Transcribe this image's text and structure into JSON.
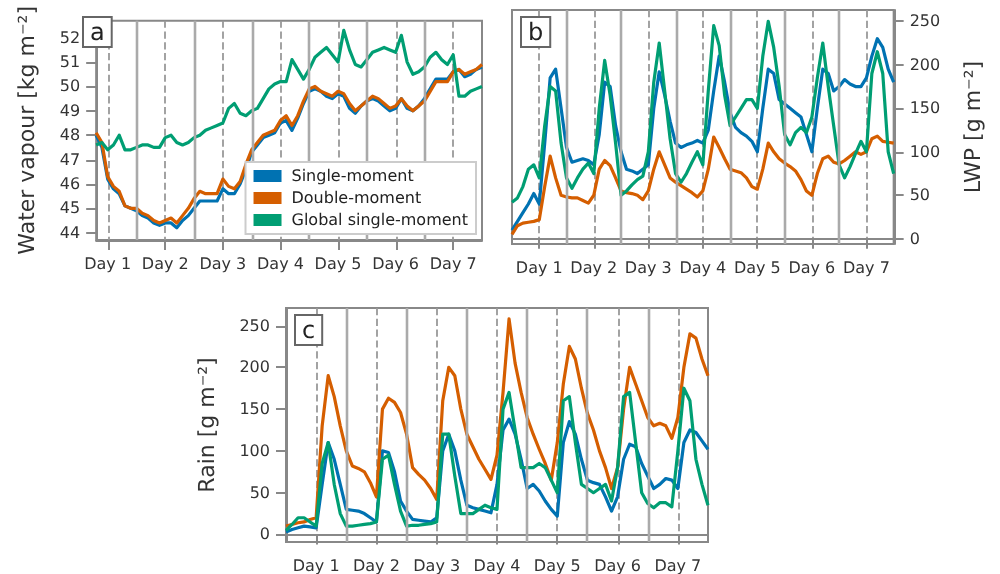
{
  "chart_data": [
    {
      "type": "line",
      "annotations": [
        "a"
      ],
      "ylabel": "Water vapour [kg m⁻²]",
      "ylim": [
        43.7,
        52.7
      ],
      "yticks": [
        44,
        45,
        46,
        47,
        48,
        49,
        50,
        51,
        52
      ],
      "legend": "bottom right",
      "marker": "none",
      "grid": "x",
      "categories": [
        null,
        null,
        "Day 1",
        null,
        null,
        null,
        null,
        null,
        null,
        null,
        null,
        null,
        "Day 2",
        null,
        null,
        null,
        null,
        null,
        null,
        null,
        null,
        null,
        "Day 3",
        null,
        null,
        null,
        null,
        null,
        null,
        null,
        null,
        null,
        "Day 4",
        null,
        null,
        null,
        null,
        null,
        null,
        null,
        null,
        null,
        "Day 5",
        null,
        null,
        null,
        null,
        null,
        null,
        null,
        null,
        null,
        "Day 6",
        null,
        null,
        null,
        null,
        null,
        null,
        null,
        null,
        null,
        "Day 7",
        null,
        null,
        null,
        null,
        null
      ],
      "series": [
        {
          "name": "Single-moment",
          "color": "#0072b2",
          "values": [
            48.0,
            47.5,
            46.2,
            45.8,
            45.6,
            45.1,
            45.0,
            44.9,
            44.7,
            44.6,
            44.4,
            44.3,
            44.4,
            44.4,
            44.2,
            44.5,
            44.7,
            45.0,
            45.3,
            45.3,
            45.3,
            45.3,
            45.8,
            45.6,
            45.6,
            46.0,
            46.6,
            47.3,
            47.6,
            47.9,
            48.0,
            48.1,
            48.5,
            48.6,
            48.2,
            48.7,
            49.3,
            49.8,
            49.9,
            49.8,
            49.6,
            49.5,
            49.7,
            49.6,
            49.1,
            48.9,
            49.2,
            49.4,
            49.5,
            49.4,
            49.2,
            49.0,
            49.1,
            49.5,
            49.1,
            49.0,
            49.2,
            49.5,
            49.9,
            50.3,
            50.3,
            50.3,
            50.6,
            50.7,
            50.4,
            50.5,
            50.7,
            50.8
          ]
        },
        {
          "name": "Double-moment",
          "color": "#d55e00",
          "values": [
            48.1,
            47.7,
            46.3,
            45.9,
            45.7,
            45.1,
            45.0,
            45.0,
            44.8,
            44.7,
            44.5,
            44.4,
            44.5,
            44.6,
            44.4,
            44.7,
            45.0,
            45.4,
            45.7,
            45.6,
            45.6,
            45.6,
            46.2,
            45.9,
            45.8,
            46.1,
            46.8,
            47.4,
            47.7,
            48.0,
            48.1,
            48.2,
            48.6,
            48.8,
            48.4,
            48.8,
            49.4,
            49.9,
            50.0,
            49.8,
            49.7,
            49.6,
            49.8,
            49.7,
            49.3,
            49.0,
            49.2,
            49.4,
            49.6,
            49.5,
            49.3,
            49.1,
            49.2,
            49.5,
            49.2,
            49.0,
            49.2,
            49.4,
            49.8,
            50.2,
            50.2,
            50.2,
            50.6,
            50.7,
            50.5,
            50.6,
            50.7,
            50.9
          ]
        },
        {
          "name": "Global single-moment",
          "color": "#009e73",
          "values": [
            47.6,
            47.7,
            47.4,
            47.6,
            48.0,
            47.4,
            47.4,
            47.5,
            47.6,
            47.6,
            47.5,
            47.5,
            47.9,
            48.0,
            47.7,
            47.6,
            47.7,
            47.9,
            48.0,
            48.2,
            48.3,
            48.4,
            48.5,
            49.1,
            49.3,
            48.9,
            48.8,
            49.0,
            49.1,
            49.5,
            49.9,
            50.1,
            50.2,
            50.2,
            51.1,
            50.7,
            50.3,
            50.7,
            51.2,
            51.4,
            51.6,
            51.3,
            51.0,
            52.3,
            51.5,
            50.9,
            50.8,
            51.1,
            51.4,
            51.5,
            51.6,
            51.5,
            51.4,
            52.1,
            51.0,
            50.5,
            50.6,
            50.8,
            51.2,
            51.4,
            51.1,
            50.9,
            51.3,
            49.6,
            49.6,
            49.8,
            49.9,
            50.0
          ]
        }
      ]
    },
    {
      "type": "line",
      "annotations": [
        "b"
      ],
      "y2label": "LWP [g m⁻²]",
      "y2lim": [
        -6,
        263
      ],
      "y2ticks": [
        0,
        50,
        100,
        150,
        200,
        250
      ],
      "marker": "none",
      "grid": "x",
      "categories": [
        null,
        null,
        null,
        null,
        null,
        "Day 1",
        null,
        null,
        null,
        null,
        null,
        null,
        null,
        null,
        null,
        "Day 2",
        null,
        null,
        null,
        null,
        null,
        null,
        null,
        null,
        null,
        "Day 3",
        null,
        null,
        null,
        null,
        null,
        null,
        null,
        null,
        null,
        "Day 4",
        null,
        null,
        null,
        null,
        null,
        null,
        null,
        null,
        null,
        "Day 5",
        null,
        null,
        null,
        null,
        null,
        null,
        null,
        null,
        null,
        "Day 6",
        null,
        null,
        null,
        null,
        null,
        null,
        null,
        null,
        null,
        "Day 7",
        null,
        null,
        null,
        null,
        null
      ],
      "series": [
        {
          "color": "#0072b2",
          "axis": "y2",
          "values": [
            10,
            20,
            30,
            40,
            52,
            40,
            110,
            185,
            195,
            150,
            105,
            88,
            90,
            92,
            90,
            85,
            120,
            180,
            175,
            130,
            100,
            80,
            78,
            75,
            80,
            85,
            150,
            192,
            165,
            135,
            110,
            105,
            108,
            110,
            113,
            110,
            125,
            170,
            210,
            180,
            145,
            128,
            122,
            118,
            112,
            100,
            150,
            195,
            190,
            160,
            155,
            150,
            145,
            140,
            120,
            100,
            150,
            195,
            190,
            170,
            175,
            183,
            178,
            175,
            175,
            185,
            210,
            230,
            220,
            195,
            180
          ]
        },
        {
          "color": "#d55e00",
          "axis": "y2",
          "values": [
            5,
            15,
            18,
            19,
            20,
            22,
            60,
            95,
            70,
            50,
            48,
            47,
            47,
            44,
            41,
            50,
            80,
            90,
            84,
            70,
            55,
            53,
            52,
            50,
            45,
            55,
            80,
            100,
            85,
            70,
            65,
            61,
            57,
            53,
            48,
            55,
            80,
            117,
            105,
            92,
            80,
            78,
            76,
            70,
            60,
            57,
            80,
            110,
            100,
            92,
            87,
            83,
            78,
            68,
            55,
            50,
            75,
            92,
            95,
            88,
            86,
            90,
            95,
            100,
            97,
            100,
            115,
            118,
            112,
            111,
            110
          ]
        },
        {
          "color": "#009e73",
          "axis": "y2",
          "values": [
            42,
            47,
            60,
            80,
            85,
            70,
            130,
            175,
            170,
            110,
            70,
            58,
            70,
            80,
            87,
            75,
            150,
            205,
            165,
            110,
            50,
            55,
            62,
            68,
            72,
            100,
            180,
            225,
            170,
            115,
            75,
            65,
            75,
            88,
            100,
            85,
            170,
            245,
            222,
            165,
            130,
            140,
            150,
            160,
            160,
            150,
            210,
            250,
            220,
            175,
            120,
            108,
            122,
            128,
            122,
            140,
            185,
            225,
            175,
            130,
            85,
            70,
            83,
            98,
            112,
            100,
            190,
            215,
            190,
            100,
            75
          ]
        }
      ]
    },
    {
      "type": "line",
      "annotations": [
        "c"
      ],
      "ylabel": "Rain [g m⁻²]",
      "ylim": [
        -9,
        271
      ],
      "yticks": [
        0,
        50,
        100,
        150,
        200,
        250
      ],
      "marker": "none",
      "grid": "x",
      "categories": [
        null,
        null,
        null,
        null,
        null,
        "Day 1",
        null,
        null,
        null,
        null,
        null,
        null,
        null,
        null,
        null,
        "Day 2",
        null,
        null,
        null,
        null,
        null,
        null,
        null,
        null,
        null,
        "Day 3",
        null,
        null,
        null,
        null,
        null,
        null,
        null,
        null,
        null,
        "Day 4",
        null,
        null,
        null,
        null,
        null,
        null,
        null,
        null,
        null,
        "Day 5",
        null,
        null,
        null,
        null,
        null,
        null,
        null,
        null,
        null,
        "Day 6",
        null,
        null,
        null,
        null,
        null,
        null,
        null,
        null,
        null,
        "Day 7",
        null,
        null,
        null,
        null,
        null
      ],
      "series": [
        {
          "color": "#0072b2",
          "values": [
            3,
            6,
            8,
            10,
            9,
            8,
            60,
            110,
            90,
            60,
            30,
            29,
            28,
            25,
            20,
            15,
            100,
            98,
            75,
            40,
            28,
            18,
            17,
            16,
            15,
            20,
            100,
            120,
            100,
            65,
            35,
            32,
            30,
            28,
            26,
            60,
            125,
            138,
            120,
            90,
            55,
            60,
            52,
            40,
            30,
            22,
            110,
            135,
            120,
            90,
            65,
            62,
            60,
            45,
            28,
            45,
            90,
            108,
            105,
            85,
            70,
            55,
            60,
            67,
            65,
            55,
            110,
            125,
            122,
            112,
            102
          ]
        },
        {
          "color": "#d55e00",
          "values": [
            10,
            12,
            14,
            15,
            18,
            20,
            130,
            190,
            165,
            130,
            100,
            82,
            79,
            75,
            62,
            45,
            150,
            163,
            158,
            146,
            120,
            80,
            72,
            65,
            55,
            42,
            160,
            200,
            190,
            150,
            120,
            105,
            90,
            78,
            66,
            95,
            170,
            258,
            205,
            170,
            140,
            120,
            102,
            85,
            65,
            110,
            180,
            225,
            210,
            175,
            145,
            125,
            100,
            80,
            55,
            80,
            150,
            200,
            180,
            160,
            140,
            130,
            133,
            130,
            115,
            140,
            200,
            240,
            235,
            210,
            190
          ]
        },
        {
          "color": "#009e73",
          "values": [
            5,
            12,
            20,
            20,
            15,
            10,
            85,
            110,
            60,
            25,
            10,
            10,
            11,
            12,
            13,
            15,
            90,
            95,
            60,
            28,
            10,
            11,
            11,
            12,
            13,
            15,
            120,
            120,
            70,
            25,
            25,
            25,
            30,
            35,
            32,
            30,
            150,
            170,
            125,
            80,
            80,
            80,
            85,
            80,
            65,
            50,
            160,
            165,
            110,
            60,
            55,
            50,
            55,
            60,
            40,
            80,
            165,
            170,
            110,
            50,
            37,
            32,
            38,
            38,
            33,
            100,
            175,
            160,
            90,
            60,
            35
          ]
        }
      ]
    }
  ]
}
